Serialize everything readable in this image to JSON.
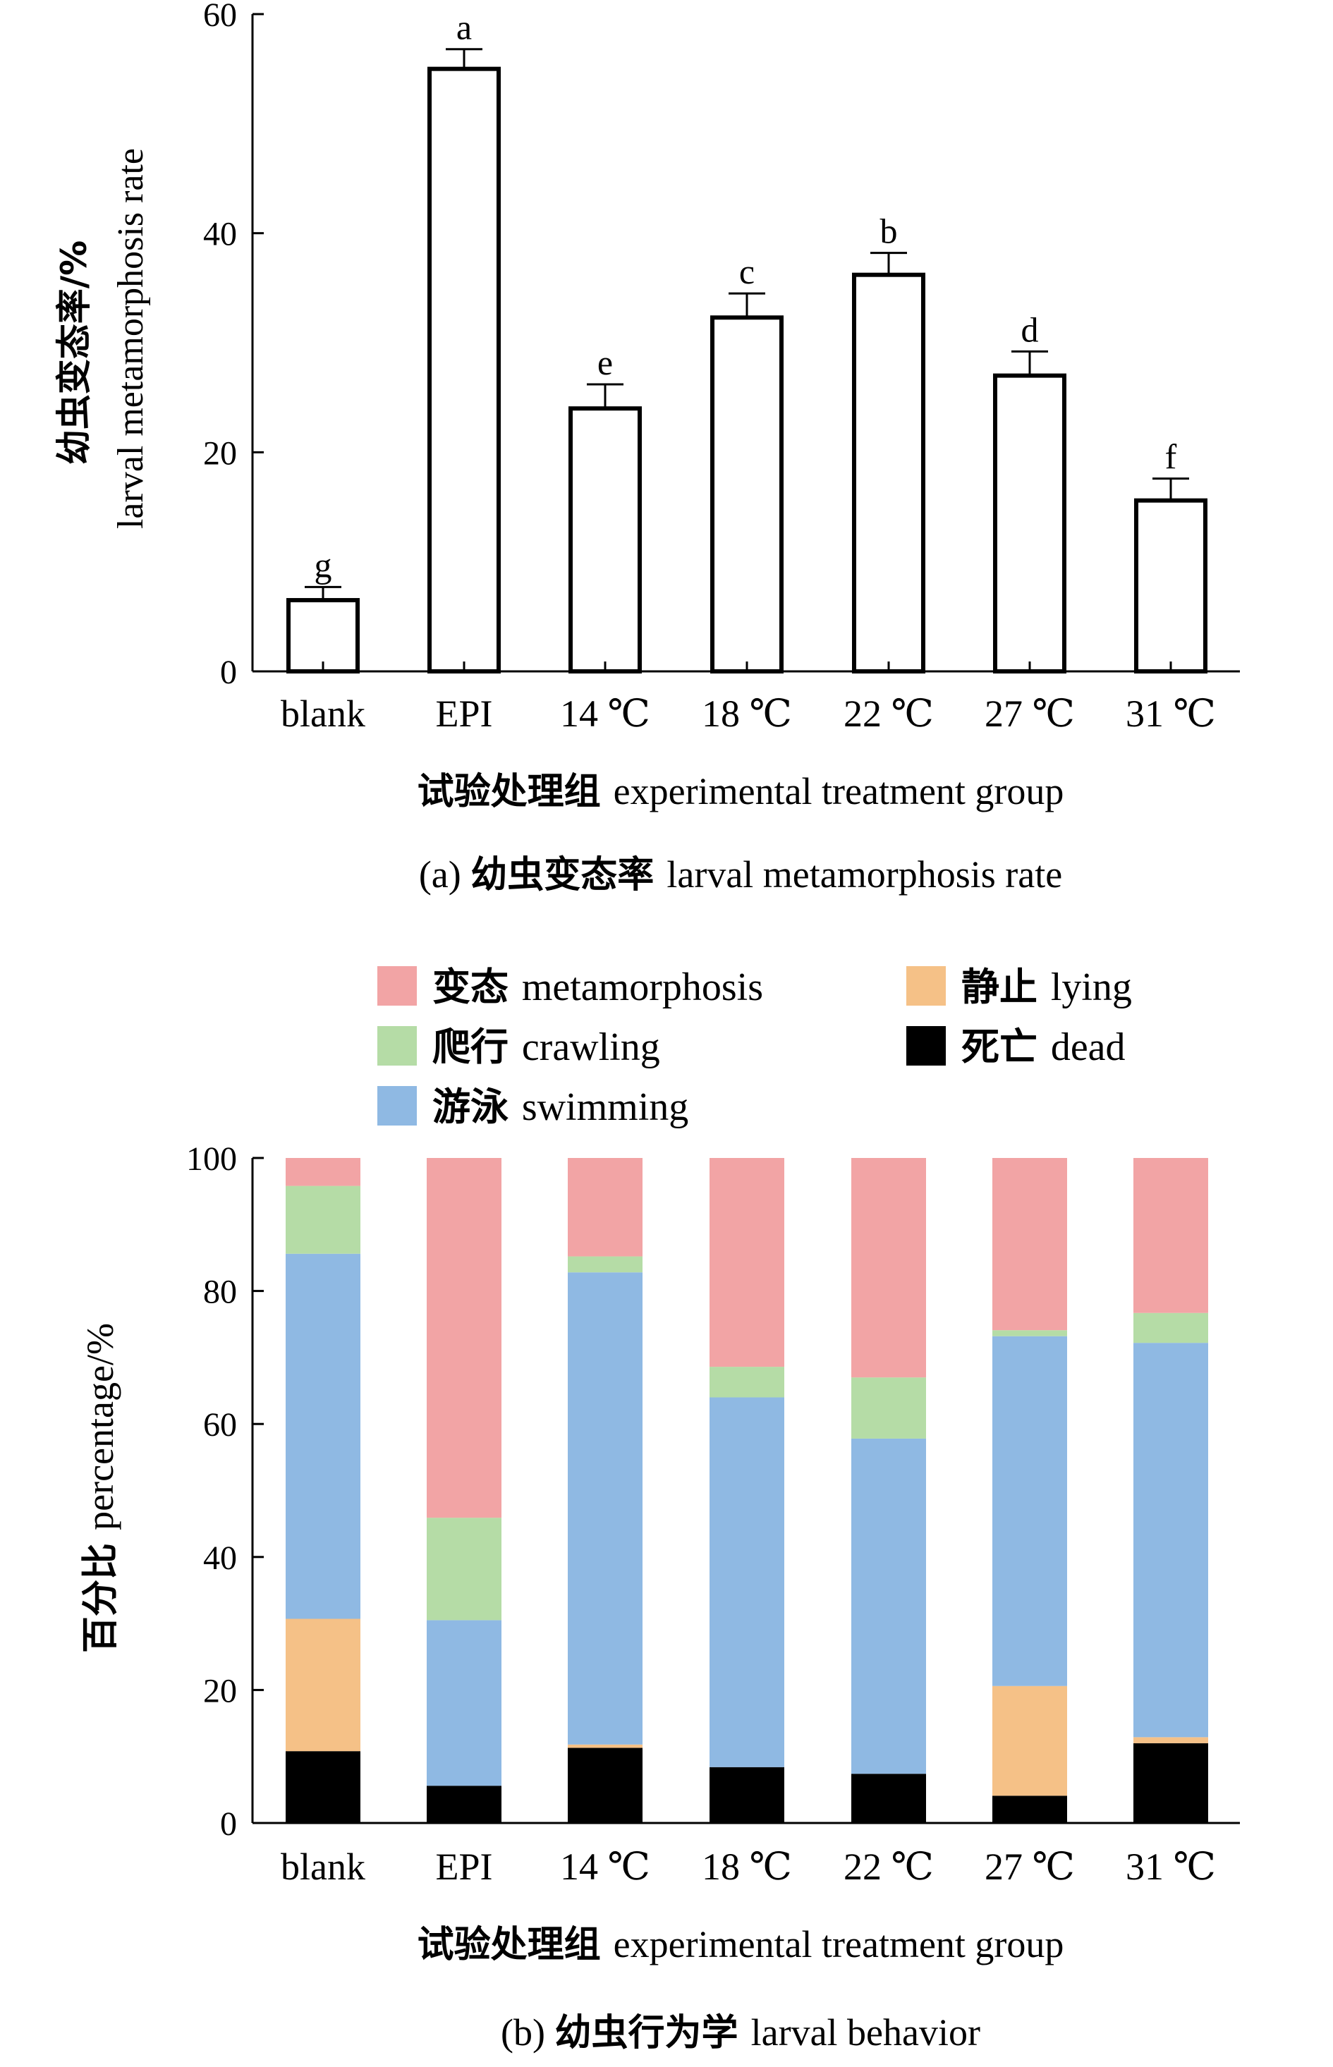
{
  "chart_data": [
    {
      "type": "bar",
      "caption": "(a) 幼虫变态率 larval metamorphosis rate",
      "xlabel": "试验处理组 experimental treatment group",
      "ylabel_cn": "幼虫变态率/%",
      "ylabel_en": "larval metamorphosis rate",
      "categories": [
        "blank",
        "EPI",
        "14 ℃",
        "18 ℃",
        "22 ℃",
        "27 ℃",
        "31 ℃"
      ],
      "values": [
        6.5,
        55.0,
        24.0,
        32.3,
        36.2,
        27.0,
        15.6
      ],
      "errors": [
        1.2,
        1.8,
        2.2,
        2.2,
        2.0,
        2.2,
        2.0
      ],
      "letters": [
        "g",
        "a",
        "e",
        "c",
        "b",
        "d",
        "f"
      ],
      "ylim": [
        0,
        60
      ],
      "yticks": [
        0,
        20,
        40,
        60
      ]
    },
    {
      "type": "stacked_bar",
      "caption": "(b) 幼虫行为学 larval behavior",
      "xlabel": "试验处理组 experimental treatment group",
      "ylabel": "百分比 percentage/%",
      "categories": [
        "blank",
        "EPI",
        "14 ℃",
        "18 ℃",
        "22 ℃",
        "27 ℃",
        "31 ℃"
      ],
      "ylim": [
        0,
        100
      ],
      "yticks": [
        0,
        20,
        40,
        60,
        80,
        100
      ],
      "legend_position": "top",
      "series": [
        {
          "name": "死亡 dead",
          "color": "#000000",
          "values": [
            10.8,
            5.6,
            11.3,
            8.4,
            7.4,
            4.1,
            12.0
          ]
        },
        {
          "name": "静止 lying",
          "color": "#f5c187",
          "values": [
            19.9,
            0.0,
            0.5,
            0.0,
            0.0,
            16.5,
            0.9
          ]
        },
        {
          "name": "游泳 swimming",
          "color": "#8fb9e3",
          "values": [
            54.9,
            24.9,
            71.0,
            55.6,
            50.4,
            52.6,
            59.3
          ]
        },
        {
          "name": "爬行 crawling",
          "color": "#b5dca6",
          "values": [
            10.2,
            15.4,
            2.4,
            4.6,
            9.2,
            0.9,
            4.5
          ]
        },
        {
          "name": "变态 metamorphosis",
          "color": "#f2a4a5",
          "values": [
            4.2,
            54.1,
            14.8,
            31.4,
            33.0,
            25.9,
            23.3
          ]
        }
      ]
    }
  ]
}
